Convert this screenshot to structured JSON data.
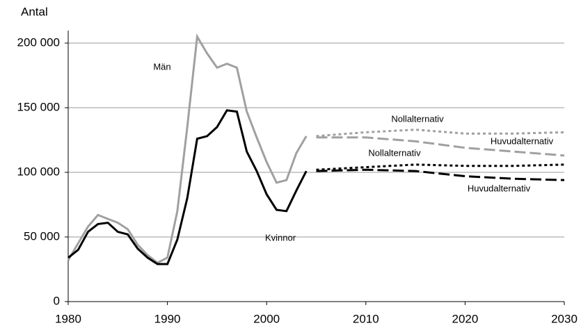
{
  "chart_data": {
    "type": "line",
    "ylabel": "Antal",
    "xlim": [
      1980,
      2030
    ],
    "xticks": [
      1980,
      1990,
      2000,
      2010,
      2020,
      2030
    ],
    "ylim": [
      0,
      200000
    ],
    "yticks": [
      0,
      {
        "value": 50000,
        "label": "50 000"
      },
      {
        "value": 100000,
        "label": "100 000"
      },
      {
        "value": 150000,
        "label": "150 000"
      },
      {
        "value": 200000,
        "label": "200 000"
      }
    ],
    "grid": true,
    "series": [
      {
        "name": "Män",
        "color": "#a0a0a0",
        "dash": "solid",
        "x": [
          1980,
          1981,
          1982,
          1983,
          1984,
          1985,
          1986,
          1987,
          1988,
          1989,
          1990,
          1991,
          1992,
          1993,
          1994,
          1995,
          1996,
          1997,
          1998,
          1999,
          2000,
          2001,
          2002,
          2003,
          2004
        ],
        "values": [
          32000,
          45000,
          58000,
          67000,
          64000,
          61000,
          56000,
          44000,
          36000,
          30000,
          34000,
          70000,
          135000,
          205000,
          192000,
          181000,
          184000,
          181000,
          147000,
          127000,
          108000,
          92000,
          94000,
          115000,
          128000
        ]
      },
      {
        "name": "Kvinnor",
        "color": "#000000",
        "dash": "solid",
        "x": [
          1980,
          1981,
          1982,
          1983,
          1984,
          1985,
          1986,
          1987,
          1988,
          1989,
          1990,
          1991,
          1992,
          1993,
          1994,
          1995,
          1996,
          1997,
          1998,
          1999,
          2000,
          2001,
          2002,
          2003,
          2004
        ],
        "values": [
          34000,
          40000,
          54000,
          60000,
          61000,
          54000,
          52000,
          41000,
          34000,
          29000,
          29000,
          48000,
          80000,
          126000,
          128000,
          135000,
          148000,
          147000,
          116000,
          101000,
          83000,
          71000,
          70000,
          86000,
          101000
        ]
      },
      {
        "name": "Nollalternativ",
        "color": "#a0a0a0",
        "dash": "short",
        "x": [
          2005,
          2010,
          2015,
          2020,
          2025,
          2030
        ],
        "values": [
          128000,
          131000,
          133000,
          130000,
          130000,
          131000
        ]
      },
      {
        "name": "Huvudalternativ",
        "color": "#a0a0a0",
        "dash": "long",
        "x": [
          2005,
          2010,
          2015,
          2020,
          2025,
          2030
        ],
        "values": [
          127000,
          127000,
          124000,
          119000,
          116000,
          113000
        ]
      },
      {
        "name": "Nollalternativ",
        "color": "#000000",
        "dash": "short",
        "x": [
          2005,
          2010,
          2015,
          2020,
          2025,
          2030
        ],
        "values": [
          102000,
          104000,
          106000,
          105000,
          105000,
          106000
        ]
      },
      {
        "name": "Huvudalternativ",
        "color": "#000000",
        "dash": "long",
        "x": [
          2005,
          2010,
          2015,
          2020,
          2025,
          2030
        ],
        "values": [
          101000,
          102000,
          101000,
          97000,
          95000,
          94000
        ]
      }
    ]
  }
}
